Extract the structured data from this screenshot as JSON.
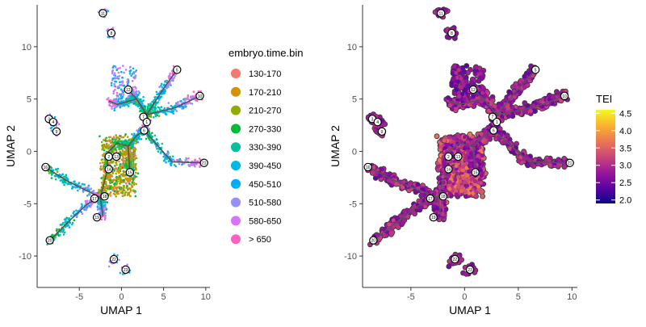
{
  "chart_data": [
    {
      "type": "scatter",
      "panel": "left",
      "xlabel": "UMAP 1",
      "ylabel": "UMAP 2",
      "xlim": [
        -10,
        10.5
      ],
      "ylim": [
        -13,
        14
      ],
      "xticks": [
        -5,
        0,
        5,
        10
      ],
      "yticks": [
        -10,
        -5,
        0,
        5,
        10
      ],
      "xtick_labels": [
        "-5",
        "0",
        "5",
        "10"
      ],
      "ytick_labels": [
        "-10",
        "-5",
        "0",
        "5",
        "10"
      ],
      "color_by": "embryo.time.bin",
      "legend": {
        "title": "embryo.time.bin",
        "position": "right",
        "entries": [
          {
            "label": "130-170",
            "color": "#F8766D"
          },
          {
            "label": "170-210",
            "color": "#D39200"
          },
          {
            "label": "210-270",
            "color": "#93AA00"
          },
          {
            "label": "270-330",
            "color": "#00BA38"
          },
          {
            "label": "330-390",
            "color": "#00C19F"
          },
          {
            "label": "390-450",
            "color": "#00B9E3"
          },
          {
            "label": "450-510",
            "color": "#00ADFA"
          },
          {
            "label": "510-580",
            "color": "#9590FF"
          },
          {
            "label": "580-650",
            "color": "#DB72FB"
          },
          {
            "label": "> 650",
            "color": "#FF61C3"
          }
        ]
      }
    },
    {
      "type": "scatter",
      "panel": "right",
      "xlabel": "UMAP 1",
      "ylabel": "UMAP 2",
      "xlim": [
        -9.5,
        10.5
      ],
      "ylim": [
        -13,
        14
      ],
      "xticks": [
        -5,
        0,
        5,
        10
      ],
      "yticks": [
        -10,
        -5,
        0,
        5,
        10
      ],
      "xtick_labels": [
        "-5",
        "0",
        "5",
        "10"
      ],
      "ytick_labels": [
        "-10",
        "-5",
        "0",
        "5",
        "10"
      ],
      "color_by": "TEI",
      "colorbar": {
        "title": "TEI",
        "position": "right",
        "range": [
          1.9,
          4.6
        ],
        "ticks": [
          2.0,
          2.5,
          3.0,
          3.5,
          4.0,
          4.5
        ],
        "tick_labels": [
          "2.0",
          "2.5",
          "3.0",
          "3.5",
          "4.0",
          "4.5"
        ],
        "gradient": [
          "#0D0887",
          "#5B02A3",
          "#9A179B",
          "#CB4678",
          "#EB7852",
          "#FBB32F",
          "#F0F921"
        ]
      }
    }
  ],
  "trajectory": {
    "branches": [
      [
        [
          -2.5,
          -4.4
        ],
        [
          -1.8,
          -2.2
        ],
        [
          -1.5,
          0.0
        ],
        [
          -0.5,
          0.8
        ],
        [
          0.8,
          0.5
        ]
      ],
      [
        [
          -8.5,
          -8.5
        ],
        [
          -6.0,
          -6.5
        ],
        [
          -4.0,
          -5.0
        ],
        [
          -2.5,
          -4.4
        ]
      ],
      [
        [
          -9.0,
          -1.5
        ],
        [
          -6.5,
          -2.8
        ],
        [
          -3.5,
          -4.0
        ],
        [
          -2.5,
          -4.4
        ]
      ],
      [
        [
          -2.5,
          -4.4
        ],
        [
          -2.2,
          -6.2
        ]
      ],
      [
        [
          0.8,
          0.5
        ],
        [
          1.0,
          -2.0
        ]
      ],
      [
        [
          0.8,
          0.5
        ],
        [
          1.8,
          1.5
        ],
        [
          2.7,
          2.0
        ],
        [
          3.0,
          3.5
        ]
      ],
      [
        [
          2.7,
          2.0
        ],
        [
          6.0,
          -1.0
        ],
        [
          9.7,
          -1.1
        ]
      ],
      [
        [
          3.0,
          3.5
        ],
        [
          5.0,
          6.0
        ],
        [
          6.6,
          7.8
        ]
      ],
      [
        [
          3.0,
          3.5
        ],
        [
          6.5,
          4.2
        ],
        [
          9.3,
          5.3
        ]
      ],
      [
        [
          3.0,
          3.5
        ],
        [
          1.8,
          5.0
        ],
        [
          0.8,
          5.9
        ]
      ],
      [
        [
          1.8,
          5.0
        ],
        [
          -0.5,
          4.5
        ],
        [
          -1.5,
          4.8
        ]
      ]
    ],
    "nodes": [
      {
        "x": -2.2,
        "y": 13.2,
        "label": "11"
      },
      {
        "x": -1.2,
        "y": 11.3,
        "label": "8"
      },
      {
        "x": 6.6,
        "y": 7.8,
        "label": "5"
      },
      {
        "x": 0.8,
        "y": 5.9,
        "label": "12"
      },
      {
        "x": 9.3,
        "y": 5.3,
        "label": "10"
      },
      {
        "x": 2.6,
        "y": 3.3,
        "label": "7"
      },
      {
        "x": 3.0,
        "y": 2.8,
        "label": "1"
      },
      {
        "x": 2.7,
        "y": 2.0,
        "label": "6"
      },
      {
        "x": -8.6,
        "y": 3.1,
        "label": "3"
      },
      {
        "x": -8.1,
        "y": 2.8,
        "label": "4"
      },
      {
        "x": -7.7,
        "y": 1.9,
        "label": "9"
      },
      {
        "x": -1.5,
        "y": -0.5,
        "label": "2"
      },
      {
        "x": -0.6,
        "y": -0.5,
        "label": "13"
      },
      {
        "x": -1.5,
        "y": -1.7,
        "label": "14"
      },
      {
        "x": 1.0,
        "y": -2.0,
        "label": "15"
      },
      {
        "x": -9.0,
        "y": -1.5,
        "label": "16"
      },
      {
        "x": -3.2,
        "y": -4.5,
        "label": "17"
      },
      {
        "x": -2.0,
        "y": -4.3,
        "label": "18"
      },
      {
        "x": -2.9,
        "y": -6.3,
        "label": "19"
      },
      {
        "x": -8.5,
        "y": -8.5,
        "label": "20"
      },
      {
        "x": 9.8,
        "y": -1.1,
        "label": "21"
      },
      {
        "x": -0.9,
        "y": -10.3,
        "label": "22"
      },
      {
        "x": 0.5,
        "y": -11.3,
        "label": "23"
      }
    ],
    "isolated_groups": [
      [
        [
          -2.2,
          13.2
        ],
        [
          -1.2,
          11.3
        ]
      ],
      [
        [
          -8.6,
          3.1
        ],
        [
          -8.1,
          2.8
        ],
        [
          -7.7,
          1.9
        ]
      ],
      [
        [
          -0.9,
          -10.3
        ],
        [
          0.5,
          -11.3
        ]
      ]
    ]
  }
}
